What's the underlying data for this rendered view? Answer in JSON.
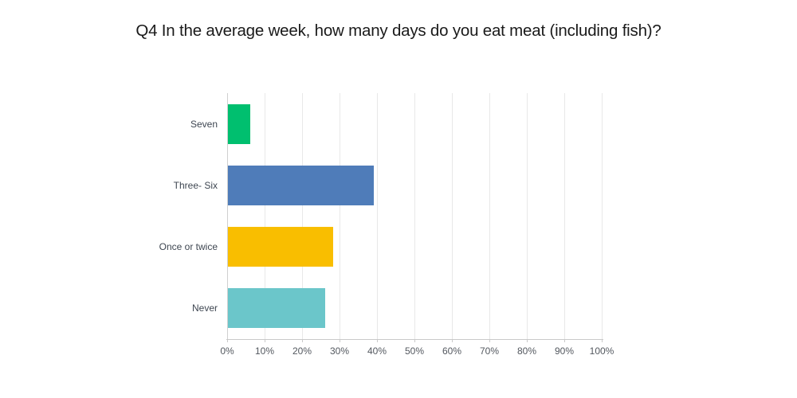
{
  "title": "Q4 In the average week, how many days do you eat meat (including fish)?",
  "chart_data": {
    "type": "bar",
    "orientation": "horizontal",
    "title": "Q4 In the average week, how many days do you eat meat (including fish)?",
    "categories": [
      "Seven",
      "Three- Six",
      "Once or twice",
      "Never"
    ],
    "values": [
      6,
      39,
      28,
      26
    ],
    "bar_colors": [
      "#00bf6f",
      "#4f7cb9",
      "#f9be00",
      "#6bc6ca"
    ],
    "xlabel": "",
    "ylabel": "",
    "xlim": [
      0,
      100
    ],
    "x_tick_labels": [
      "0%",
      "10%",
      "20%",
      "30%",
      "40%",
      "50%",
      "60%",
      "70%",
      "80%",
      "90%",
      "100%"
    ],
    "x_tick_values": [
      0,
      10,
      20,
      30,
      40,
      50,
      60,
      70,
      80,
      90,
      100
    ],
    "grid": "vertical",
    "legend": "none"
  },
  "colors": {
    "background": "#ffffff",
    "gridline": "#e8e8e8",
    "zero_line": "#cfcfcf",
    "axis_line": "#c9c9c9",
    "category_text": "#3e4651",
    "tick_text": "#53585f",
    "title_text": "#1a1a1a"
  }
}
